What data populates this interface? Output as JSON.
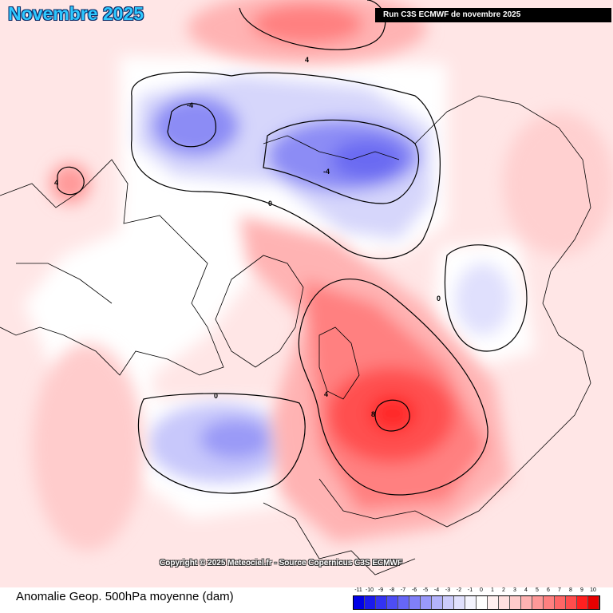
{
  "header": {
    "title": "Novembre 2025",
    "run_info": "Run C3S ECMWF de novembre 2025"
  },
  "map": {
    "credit": "Copyright © 2025 Meteociel.fr - Source Copernicus C3S ECMWF",
    "contour_labels": {
      "north_pacific_high": "4",
      "canada_low": "-4",
      "siberia_low": "-4",
      "alaska_high": "4",
      "arctic_zero": "0",
      "central_asia_zero": "0",
      "atlantic_zero": "0",
      "europe_ring": "4",
      "europe_max": "8"
    }
  },
  "legend": {
    "label": "Anomalie Geop. 500hPa moyenne (dam)",
    "ticks": [
      "-11",
      "-10",
      "-9",
      "-8",
      "-7",
      "-6",
      "-5",
      "-4",
      "-3",
      "-2",
      "-1",
      "0",
      "1",
      "2",
      "3",
      "4",
      "5",
      "6",
      "7",
      "8",
      "9",
      "10"
    ],
    "colors": [
      "#0000e6",
      "#1a1aee",
      "#3333f2",
      "#4d4df5",
      "#6666f7",
      "#8080f8",
      "#9999fa",
      "#b3b3fb",
      "#ccccfc",
      "#e0e0fd",
      "#f4f4fe",
      "#ffffff",
      "#fff0f0",
      "#ffe0e0",
      "#ffcccc",
      "#ffb3b3",
      "#ff9999",
      "#ff8080",
      "#ff6666",
      "#ff4d4d",
      "#ff2020",
      "#e60000"
    ]
  }
}
